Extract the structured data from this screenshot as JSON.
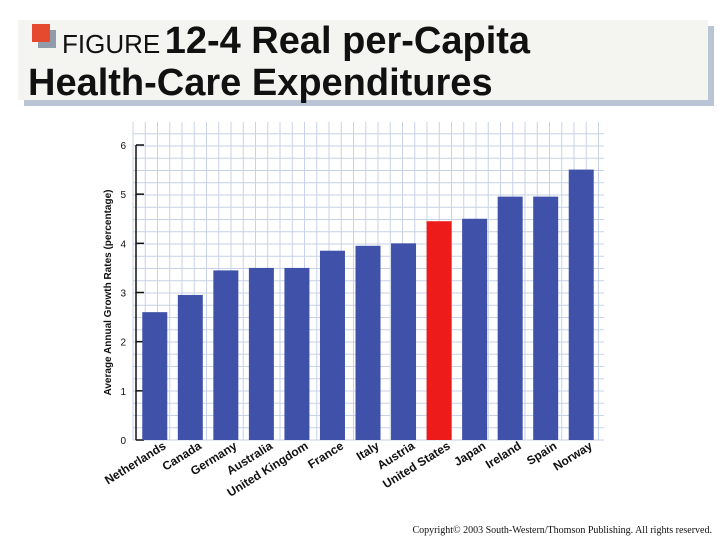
{
  "title": {
    "figure_word": "FIGURE",
    "figure_number": "12-4 Real per-Capita",
    "line2": "Health-Care Expenditures"
  },
  "copyright": "Copyright© 2003 South-Western/Thomson Publishing. All rights reserved.",
  "colors": {
    "bar": "#3f51a8",
    "highlight": "#ee1b1b",
    "grid": "#c7d2e6",
    "axis": "#111111"
  },
  "chart_data": {
    "type": "bar",
    "title": "",
    "xlabel": "",
    "ylabel": "Average Annual Growth Rates (percentage)",
    "ylim": [
      0,
      6
    ],
    "yticks": [
      0,
      1,
      2,
      3,
      4,
      5,
      6
    ],
    "grid": true,
    "categories": [
      "Netherlands",
      "Canada",
      "Germany",
      "Australia",
      "United Kingdom",
      "France",
      "Italy",
      "Austria",
      "United States",
      "Japan",
      "Ireland",
      "Spain",
      "Norway"
    ],
    "values": [
      2.6,
      2.95,
      3.45,
      3.5,
      3.5,
      3.85,
      3.95,
      4.0,
      4.45,
      4.5,
      4.95,
      4.95,
      5.5
    ],
    "highlight_category": "United States"
  }
}
